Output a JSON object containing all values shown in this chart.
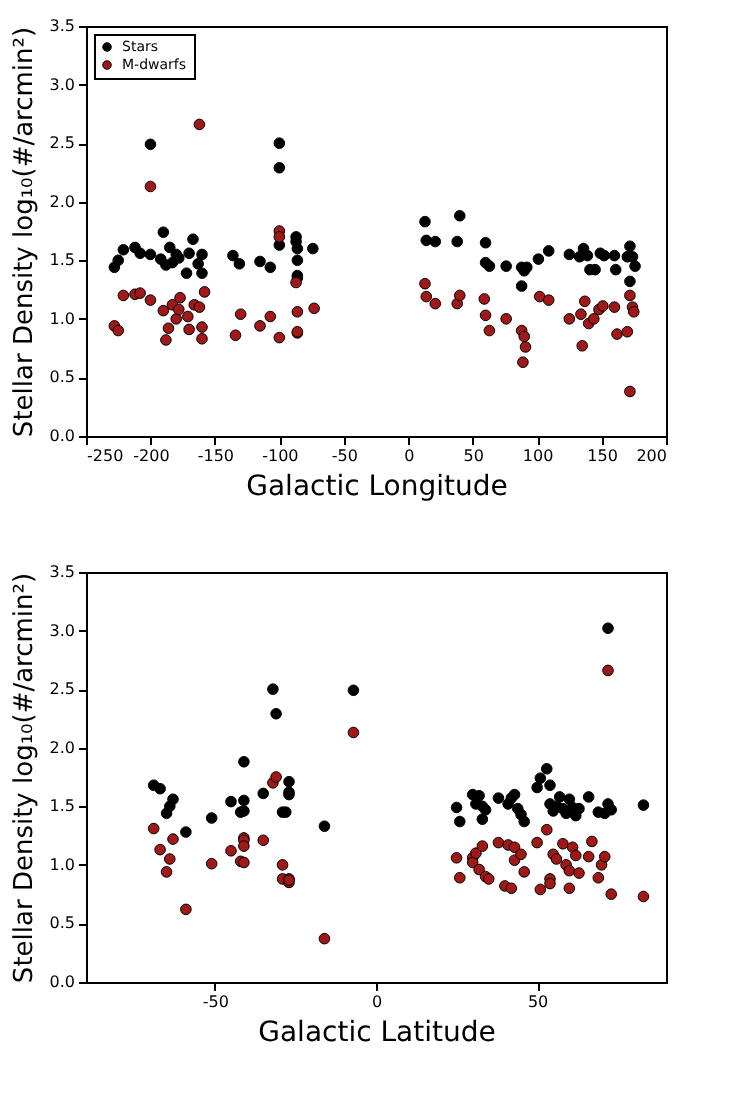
{
  "chart_data": [
    {
      "type": "scatter",
      "xlabel": "Galactic Longitude",
      "ylabel": "Stellar Density log₁₀(#/arcmin²)",
      "xlim": [
        -250,
        200
      ],
      "ylim": [
        0,
        3.5
      ],
      "xticks": [
        -250,
        -200,
        -150,
        -100,
        -50,
        0,
        50,
        100,
        150,
        200
      ],
      "yticks": [
        {
          "value": 0,
          "label": "0.0"
        },
        {
          "value": 0.5,
          "label": "0.5"
        },
        {
          "value": 1,
          "label": "1.0"
        },
        {
          "value": 1.5,
          "label": "1.5"
        },
        {
          "value": 2,
          "label": "2.0"
        },
        {
          "value": 2.5,
          "label": "2.5"
        },
        {
          "value": 3,
          "label": "3.0"
        },
        {
          "value": 3.5,
          "label": "3.5"
        }
      ],
      "legend": "top left",
      "marker": "circle",
      "grid": false,
      "series": [
        {
          "name": "Stars",
          "color": "#000000",
          "x": [
            -228,
            -225,
            -221,
            -212,
            -208,
            -200,
            -200,
            -192,
            -190,
            -188,
            -185,
            -183,
            -180,
            -178,
            -172,
            -170,
            -167,
            -163,
            -160,
            -160,
            -136,
            -131,
            -115,
            -107,
            -100,
            -100,
            -100,
            -87,
            -87,
            -86,
            -86,
            -86,
            -86,
            -74,
            13,
            14,
            21,
            38,
            40,
            60,
            60,
            63,
            76,
            88,
            90,
            92,
            88,
            101,
            109,
            125,
            133,
            136,
            139,
            141,
            145,
            149,
            152,
            160,
            161,
            170,
            172,
            172,
            174,
            176
          ],
          "values": [
            1.44,
            1.5,
            1.59,
            1.61,
            1.56,
            1.55,
            2.49,
            1.51,
            1.74,
            1.46,
            1.61,
            1.48,
            1.55,
            1.52,
            1.39,
            1.56,
            1.68,
            1.47,
            1.39,
            1.55,
            1.54,
            1.47,
            1.49,
            1.44,
            1.63,
            2.5,
            2.29,
            1.7,
            1.66,
            1.6,
            1.5,
            1.37,
            1.35,
            1.6,
            1.83,
            1.67,
            1.66,
            1.66,
            1.88,
            1.65,
            1.48,
            1.45,
            1.45,
            1.44,
            1.41,
            1.44,
            1.28,
            1.51,
            1.58,
            1.55,
            1.53,
            1.6,
            1.54,
            1.42,
            1.42,
            1.56,
            1.54,
            1.54,
            1.42,
            1.53,
            1.62,
            1.32,
            1.53,
            1.45
          ]
        },
        {
          "name": "M-dwarfs",
          "color": "#a01818",
          "x": [
            -228,
            -225,
            -221,
            -212,
            -208,
            -200,
            -200,
            -162,
            -190,
            -188,
            -186,
            -183,
            -180,
            -178,
            -177,
            -171,
            -170,
            -166,
            -162,
            -160,
            -160,
            -158,
            -134,
            -130,
            -115,
            -107,
            -100,
            -100,
            -100,
            -87,
            -86,
            -86,
            -86,
            -73,
            13,
            14,
            21,
            38,
            40,
            59,
            60,
            63,
            76,
            88,
            90,
            91,
            89,
            102,
            109,
            125,
            134,
            135,
            137,
            140,
            144,
            148,
            151,
            160,
            162,
            170,
            172,
            172,
            174,
            175
          ],
          "values": [
            0.94,
            0.9,
            1.2,
            1.21,
            1.22,
            1.16,
            2.13,
            2.66,
            1.07,
            0.82,
            0.92,
            1.12,
            1.0,
            1.08,
            1.18,
            1.02,
            0.91,
            1.12,
            1.1,
            0.93,
            0.83,
            1.23,
            0.86,
            1.04,
            0.94,
            1.02,
            1.75,
            1.7,
            0.84,
            1.31,
            1.06,
            0.88,
            0.89,
            1.09,
            1.3,
            1.19,
            1.13,
            1.13,
            1.2,
            1.17,
            1.03,
            0.9,
            1.0,
            0.9,
            0.85,
            0.76,
            0.63,
            1.19,
            1.16,
            1.0,
            1.04,
            0.77,
            1.15,
            0.96,
            1.0,
            1.08,
            1.11,
            1.1,
            0.87,
            0.89,
            1.2,
            0.38,
            1.1,
            1.06
          ]
        }
      ]
    },
    {
      "type": "scatter",
      "xlabel": "Galactic Latitude",
      "ylabel": "Stellar Density log₁₀(#/arcmin²)",
      "xlim": [
        -90,
        90
      ],
      "ylim": [
        0,
        3.5
      ],
      "xticks": [
        -50,
        0,
        50
      ],
      "yticks": [
        {
          "value": 0,
          "label": "0.0"
        },
        {
          "value": 0.5,
          "label": "0.5"
        },
        {
          "value": 1,
          "label": "1.0"
        },
        {
          "value": 1.5,
          "label": "1.5"
        },
        {
          "value": 2,
          "label": "2.0"
        },
        {
          "value": 2.5,
          "label": "2.5"
        },
        {
          "value": 3,
          "label": "3.0"
        },
        {
          "value": 3.5,
          "label": "3.5"
        }
      ],
      "legend": "top left",
      "marker": "circle",
      "grid": false,
      "series": [
        {
          "name": "Stars",
          "color": "#000000",
          "x": [
            -69,
            -67,
            -65,
            -64,
            -63,
            -59,
            -51,
            -45,
            -41,
            -41,
            -42,
            -41,
            -35,
            -32,
            -31,
            -29,
            -28,
            -27,
            -27,
            -27,
            -16,
            -7,
            72,
            25,
            26,
            30,
            31,
            32,
            33,
            34,
            33,
            38,
            41,
            42,
            43,
            44,
            45,
            46,
            50,
            51,
            53,
            54,
            54,
            55,
            56,
            57,
            58,
            59,
            60,
            61,
            62,
            63,
            66,
            69,
            71,
            72,
            73,
            83
          ],
          "values": [
            1.68,
            1.65,
            1.44,
            1.5,
            1.56,
            1.28,
            1.4,
            1.54,
            1.88,
            1.55,
            1.45,
            1.46,
            1.61,
            2.5,
            2.29,
            1.45,
            1.45,
            1.71,
            1.62,
            1.6,
            1.33,
            2.49,
            3.02,
            1.49,
            1.37,
            1.6,
            1.52,
            1.59,
            1.5,
            1.47,
            1.39,
            1.57,
            1.52,
            1.57,
            1.6,
            1.48,
            1.43,
            1.37,
            1.66,
            1.74,
            1.82,
            1.68,
            1.52,
            1.46,
            1.5,
            1.58,
            1.48,
            1.44,
            1.56,
            1.49,
            1.42,
            1.48,
            1.58,
            1.45,
            1.44,
            1.52,
            1.47,
            1.51
          ]
        },
        {
          "name": "M-dwarfs",
          "color": "#a01818",
          "x": [
            -69,
            -67,
            -65,
            -64,
            -63,
            -59,
            -51,
            -45,
            -41,
            -41,
            -41,
            -42,
            -41,
            -35,
            -32,
            -31,
            -29,
            -29,
            -27,
            -27,
            -27,
            -16,
            -7,
            72,
            25,
            26,
            30,
            30,
            31,
            32,
            33,
            34,
            35,
            38,
            40,
            41,
            42,
            43,
            43,
            45,
            46,
            50,
            51,
            53,
            54,
            54,
            55,
            56,
            58,
            59,
            60,
            60,
            61,
            62,
            63,
            66,
            67,
            69,
            70,
            71,
            73,
            83
          ],
          "values": [
            1.31,
            1.13,
            0.94,
            1.05,
            1.22,
            0.62,
            1.01,
            1.12,
            1.23,
            1.21,
            1.16,
            1.03,
            1.02,
            1.21,
            1.7,
            1.75,
            1.0,
            0.88,
            0.88,
            0.85,
            0.87,
            0.37,
            2.13,
            2.66,
            1.06,
            0.89,
            1.06,
            1.02,
            1.1,
            0.96,
            1.16,
            0.9,
            0.88,
            1.19,
            0.82,
            1.17,
            0.8,
            1.15,
            1.04,
            1.09,
            0.94,
            1.19,
            0.79,
            1.3,
            0.88,
            0.84,
            1.09,
            1.05,
            1.18,
            1.0,
            0.95,
            0.8,
            1.15,
            1.08,
            0.93,
            1.07,
            1.2,
            0.89,
            1.0,
            1.07,
            0.75,
            0.73
          ]
        }
      ]
    }
  ]
}
